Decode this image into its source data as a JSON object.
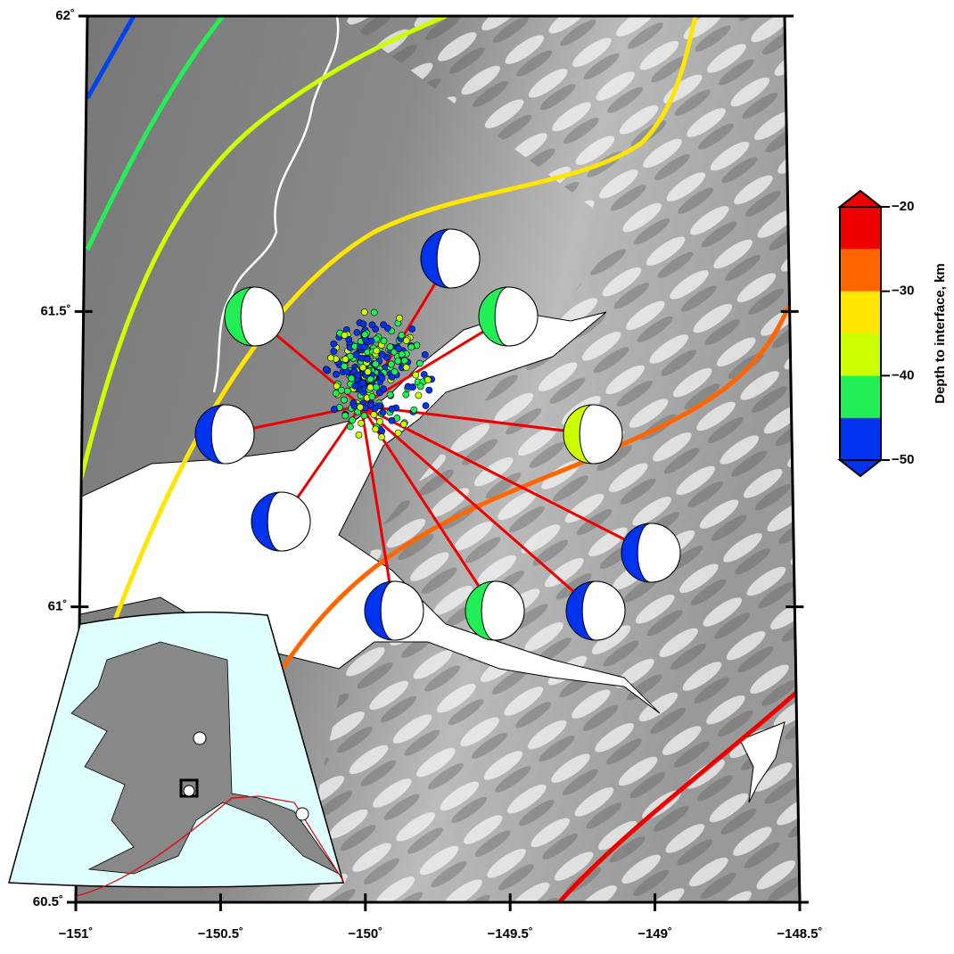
{
  "map": {
    "lat_ticks": [
      {
        "value": 62,
        "label": "62˚"
      },
      {
        "value": 61.5,
        "label": "61.5˚"
      },
      {
        "value": 61,
        "label": "61˚"
      },
      {
        "value": 60.5,
        "label": "60.5˚"
      }
    ],
    "lon_ticks": [
      {
        "value": -151,
        "label": "−151˚"
      },
      {
        "value": -150.5,
        "label": "−150.5˚"
      },
      {
        "value": -150,
        "label": "−150˚"
      },
      {
        "value": -149.5,
        "label": "−149.5˚"
      },
      {
        "value": -149,
        "label": "−149˚"
      },
      {
        "value": -148.5,
        "label": "−148.5˚"
      }
    ],
    "colorbar": {
      "title": "Depth to interface, km",
      "range": [
        -50,
        -20
      ],
      "ticks": [
        {
          "value": -20,
          "label": "−20"
        },
        {
          "value": -30,
          "label": "−30"
        },
        {
          "value": -40,
          "label": "−40"
        },
        {
          "value": -50,
          "label": "−50"
        }
      ],
      "colors": [
        "#0033ee",
        "#22ee55",
        "#ccff00",
        "#ffe600",
        "#ff6600",
        "#ee0000"
      ]
    }
  }
}
